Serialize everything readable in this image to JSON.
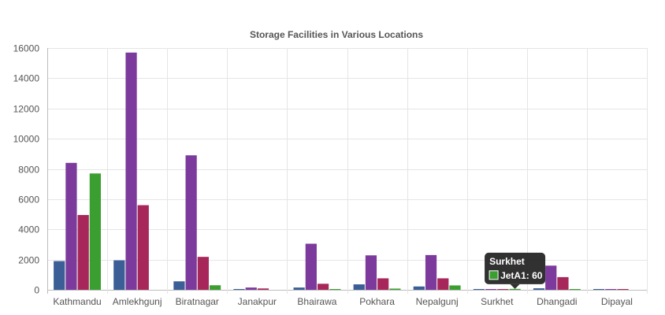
{
  "chart_data": {
    "type": "bar",
    "title": "Storage Facilities in Various Locations",
    "xlabel": "",
    "ylabel": "",
    "ylim": [
      0,
      16000
    ],
    "yticks": [
      0,
      2000,
      4000,
      6000,
      8000,
      10000,
      12000,
      14000,
      16000
    ],
    "grid": true,
    "categories": [
      "Kathmandu",
      "Amlekhgunj",
      "Biratnagar",
      "Janakpur",
      "Bhairawa",
      "Pokhara",
      "Nepalgunj",
      "Surkhet",
      "Dhangadi",
      "Dipayal"
    ],
    "series": [
      {
        "color": "#3a5e95",
        "values": [
          1900,
          1950,
          560,
          20,
          150,
          360,
          220,
          10,
          100,
          10
        ]
      },
      {
        "color": "#7b3a9c",
        "values": [
          8400,
          15700,
          8900,
          150,
          3050,
          2280,
          2300,
          50,
          1600,
          40
        ]
      },
      {
        "color": "#a8275a",
        "values": [
          4950,
          5600,
          2180,
          90,
          400,
          760,
          760,
          20,
          840,
          20
        ]
      },
      {
        "name": "JetA1",
        "color": "#3b9e31",
        "values": [
          7700,
          0,
          300,
          0,
          40,
          80,
          290,
          60,
          40,
          0
        ]
      }
    ],
    "tooltip": {
      "title": "Surkhet",
      "series_name": "JetA1",
      "value": "60",
      "body": "JetA1: 60",
      "swatch_color": "#3b9e31"
    }
  }
}
